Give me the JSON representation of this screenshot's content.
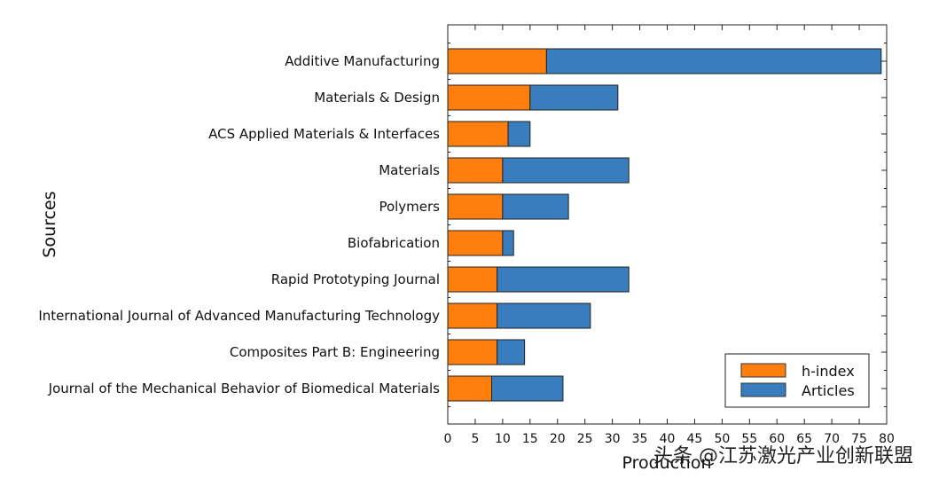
{
  "chart_data": {
    "type": "bar",
    "orientation": "horizontal",
    "stacked": true,
    "categories": [
      "Additive Manufacturing",
      "Materials & Design",
      "ACS Applied Materials & Interfaces",
      "Materials",
      "Polymers",
      "Biofabrication",
      "Rapid Prototyping Journal",
      "International Journal of Advanced Manufacturing Technology",
      "Composites Part B: Engineering",
      "Journal of the Mechanical Behavior of Biomedical Materials"
    ],
    "series": [
      {
        "name": "h-index",
        "color": "#ff7f0e",
        "values": [
          18,
          15,
          11,
          10,
          10,
          10,
          9,
          9,
          9,
          8
        ]
      },
      {
        "name": "Articles",
        "color": "#3a7dbf",
        "values": [
          61,
          16,
          4,
          23,
          12,
          2,
          24,
          17,
          5,
          13
        ]
      }
    ],
    "xlabel": "Production",
    "ylabel": "Sources",
    "xlim": [
      0,
      80
    ],
    "xticks": [
      0,
      5,
      10,
      15,
      20,
      25,
      30,
      35,
      40,
      45,
      50,
      55,
      60,
      65,
      70,
      75,
      80
    ],
    "grid": false,
    "legend_position": "bottom-right"
  },
  "watermark": "头条 @江苏激光产业创新联盟"
}
